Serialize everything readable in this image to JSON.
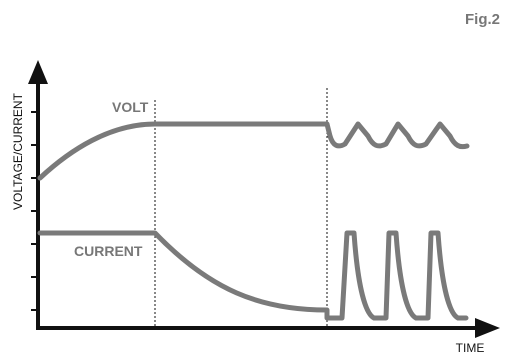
{
  "figure": {
    "label": "Fig.2"
  },
  "axes": {
    "x_label": "TIME",
    "y_label": "VOLTAGE/CURRENT"
  },
  "curves": {
    "volt_label": "VOLT",
    "current_label": "CURRENT"
  },
  "colors": {
    "curve": "#7a7a7a",
    "axis": "#111111",
    "label": "#777777"
  }
}
